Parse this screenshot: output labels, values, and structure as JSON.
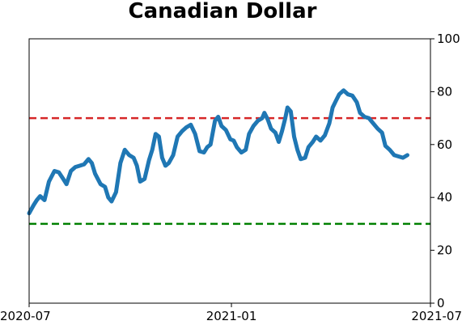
{
  "chart_data": {
    "type": "line",
    "title": "Canadian Dollar",
    "xlabel": "",
    "ylabel": "",
    "xlim": [
      "2020-07-01",
      "2021-07-01"
    ],
    "ylim": [
      0,
      100
    ],
    "x_ticks": [
      {
        "date": "2020-07-01",
        "label": "2020-07"
      },
      {
        "date": "2021-01-01",
        "label": "2021-01"
      },
      {
        "date": "2021-07-01",
        "label": "2021-07"
      }
    ],
    "y_ticks": [
      0,
      20,
      40,
      60,
      80,
      100
    ],
    "y_axis_side": "right",
    "grid": false,
    "legend": "none",
    "reference_lines": [
      {
        "y": 70,
        "color": "#d62728",
        "style": "dashed"
      },
      {
        "y": 30,
        "color": "#008000",
        "style": "dashed"
      }
    ],
    "series": [
      {
        "color": "#1f77b4",
        "points": [
          [
            "2020-07-01",
            34
          ],
          [
            "2020-07-05",
            37
          ],
          [
            "2020-07-08",
            39
          ],
          [
            "2020-07-11",
            40.5
          ],
          [
            "2020-07-15",
            39
          ],
          [
            "2020-07-19",
            46
          ],
          [
            "2020-07-24",
            50
          ],
          [
            "2020-07-28",
            49.5
          ],
          [
            "2020-08-01",
            47
          ],
          [
            "2020-08-04",
            45
          ],
          [
            "2020-08-08",
            50
          ],
          [
            "2020-08-12",
            51.5
          ],
          [
            "2020-08-16",
            52
          ],
          [
            "2020-08-20",
            52.5
          ],
          [
            "2020-08-24",
            54.5
          ],
          [
            "2020-08-27",
            53
          ],
          [
            "2020-08-30",
            49
          ],
          [
            "2020-09-04",
            45
          ],
          [
            "2020-09-08",
            44
          ],
          [
            "2020-09-11",
            40
          ],
          [
            "2020-09-14",
            38.5
          ],
          [
            "2020-09-18",
            42
          ],
          [
            "2020-09-22",
            53
          ],
          [
            "2020-09-26",
            58
          ],
          [
            "2020-09-30",
            56
          ],
          [
            "2020-10-04",
            55
          ],
          [
            "2020-10-07",
            52
          ],
          [
            "2020-10-10",
            46
          ],
          [
            "2020-10-14",
            47
          ],
          [
            "2020-10-18",
            54
          ],
          [
            "2020-10-21",
            58
          ],
          [
            "2020-10-24",
            64
          ],
          [
            "2020-10-27",
            63
          ],
          [
            "2020-10-30",
            55
          ],
          [
            "2020-11-02",
            52
          ],
          [
            "2020-11-05",
            53
          ],
          [
            "2020-11-09",
            56
          ],
          [
            "2020-11-13",
            63
          ],
          [
            "2020-11-17",
            65
          ],
          [
            "2020-11-21",
            66.5
          ],
          [
            "2020-11-25",
            67.5
          ],
          [
            "2020-11-29",
            64
          ],
          [
            "2020-12-03",
            57.5
          ],
          [
            "2020-12-07",
            57
          ],
          [
            "2020-12-10",
            59
          ],
          [
            "2020-12-13",
            60
          ],
          [
            "2020-12-17",
            69
          ],
          [
            "2020-12-20",
            70.5
          ],
          [
            "2020-12-23",
            67
          ],
          [
            "2020-12-27",
            65.5
          ],
          [
            "2020-12-31",
            62
          ],
          [
            "2021-01-03",
            61.5
          ],
          [
            "2021-01-06",
            59
          ],
          [
            "2021-01-10",
            57
          ],
          [
            "2021-01-14",
            58
          ],
          [
            "2021-01-17",
            64
          ],
          [
            "2021-01-21",
            67
          ],
          [
            "2021-01-25",
            69
          ],
          [
            "2021-01-29",
            70
          ],
          [
            "2021-01-31",
            72
          ],
          [
            "2021-02-03",
            69.5
          ],
          [
            "2021-02-06",
            66
          ],
          [
            "2021-02-10",
            64.5
          ],
          [
            "2021-02-13",
            61
          ],
          [
            "2021-02-16",
            65
          ],
          [
            "2021-02-19",
            70
          ],
          [
            "2021-02-21",
            74
          ],
          [
            "2021-02-24",
            72.5
          ],
          [
            "2021-02-27",
            63
          ],
          [
            "2021-03-02",
            58
          ],
          [
            "2021-03-05",
            54.5
          ],
          [
            "2021-03-09",
            55
          ],
          [
            "2021-03-12",
            59
          ],
          [
            "2021-03-16",
            61
          ],
          [
            "2021-03-19",
            63
          ],
          [
            "2021-03-23",
            61.5
          ],
          [
            "2021-03-27",
            63.5
          ],
          [
            "2021-03-31",
            68
          ],
          [
            "2021-04-03",
            74
          ],
          [
            "2021-04-06",
            76.5
          ],
          [
            "2021-04-09",
            79
          ],
          [
            "2021-04-13",
            80.5
          ],
          [
            "2021-04-17",
            79
          ],
          [
            "2021-04-21",
            78.5
          ],
          [
            "2021-04-25",
            76
          ],
          [
            "2021-04-28",
            72
          ],
          [
            "2021-05-02",
            70.5
          ],
          [
            "2021-05-06",
            70
          ],
          [
            "2021-05-10",
            68
          ],
          [
            "2021-05-14",
            66
          ],
          [
            "2021-05-18",
            64.5
          ],
          [
            "2021-05-21",
            59.5
          ],
          [
            "2021-05-25",
            58
          ],
          [
            "2021-05-29",
            56
          ],
          [
            "2021-06-02",
            55.5
          ],
          [
            "2021-06-06",
            55
          ],
          [
            "2021-06-10",
            56
          ]
        ]
      }
    ]
  }
}
